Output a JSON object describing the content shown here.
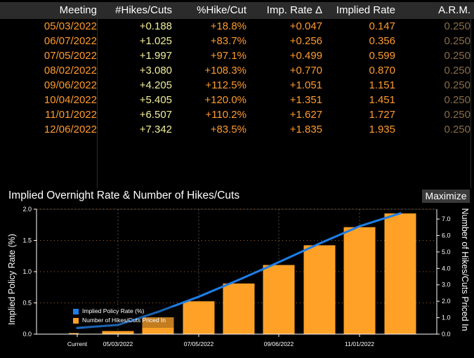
{
  "table": {
    "headers": {
      "meeting": "Meeting",
      "hikes": "#Hikes/Cuts",
      "pct": "%Hike/Cut",
      "imp": "Imp. Rate Δ",
      "rate": "Implied Rate",
      "arm": "A.R.M."
    },
    "rows": [
      {
        "meeting": "05/03/2022",
        "hikes": "+0.188",
        "pct": "+18.8%",
        "imp": "+0.047",
        "rate": "0.147",
        "arm": "0.250"
      },
      {
        "meeting": "06/07/2022",
        "hikes": "+1.025",
        "pct": "+83.7%",
        "imp": "+0.256",
        "rate": "0.356",
        "arm": "0.250"
      },
      {
        "meeting": "07/05/2022",
        "hikes": "+1.997",
        "pct": "+97.1%",
        "imp": "+0.499",
        "rate": "0.599",
        "arm": "0.250"
      },
      {
        "meeting": "08/02/2022",
        "hikes": "+3.080",
        "pct": "+108.3%",
        "imp": "+0.770",
        "rate": "0.870",
        "arm": "0.250"
      },
      {
        "meeting": "09/06/2022",
        "hikes": "+4.205",
        "pct": "+112.5%",
        "imp": "+1.051",
        "rate": "1.151",
        "arm": "0.250"
      },
      {
        "meeting": "10/04/2022",
        "hikes": "+5.405",
        "pct": "+120.0%",
        "imp": "+1.351",
        "rate": "1.451",
        "arm": "0.250"
      },
      {
        "meeting": "11/01/2022",
        "hikes": "+6.507",
        "pct": "+110.2%",
        "imp": "+1.627",
        "rate": "1.727",
        "arm": "0.250"
      },
      {
        "meeting": "12/06/2022",
        "hikes": "+7.342",
        "pct": "+83.5%",
        "imp": "+1.835",
        "rate": "1.935",
        "arm": "0.250"
      }
    ]
  },
  "panel": {
    "title": "Implied Overnight Rate & Number of Hikes/Cuts",
    "maximize_label": "Maximize"
  },
  "colors": {
    "orange": "#ff9b2f",
    "yellow": "#f2ee9b",
    "arm": "#8a6d45",
    "bar": "#ffa126",
    "line": "#1e7ee8",
    "grid_orange": "#ff9b2f"
  },
  "chart_data": {
    "type": "bar",
    "categories": [
      "Current",
      "05/03/2022",
      "06/07/2022",
      "07/05/2022",
      "08/02/2022",
      "09/06/2022",
      "10/04/2022",
      "11/01/2022",
      "12/06/2022"
    ],
    "x_tick_labels": [
      "Current",
      "05/03/2022",
      "07/05/2022",
      "09/06/2022",
      "11/01/2022"
    ],
    "series": [
      {
        "name": "Implied Policy Rate (%)",
        "type": "line",
        "axis": "left",
        "values": [
          0.1,
          0.147,
          0.356,
          0.599,
          0.87,
          1.151,
          1.451,
          1.727,
          1.935
        ]
      },
      {
        "name": "Number of Hikes/Cuts Priced In",
        "type": "bar",
        "axis": "right",
        "values": [
          0,
          0.188,
          1.025,
          1.997,
          3.08,
          4.205,
          5.405,
          6.507,
          7.342
        ]
      }
    ],
    "ylabel_left": "Implied Policy Rate (%)",
    "ylabel_right": "Number of Hikes/Cuts Priced In",
    "yticks_left": [
      "0.0",
      "0.5",
      "1.0",
      "1.5",
      "2.0"
    ],
    "yticks_right": [
      "0.0",
      "1.0",
      "2.0",
      "3.0",
      "4.0",
      "5.0",
      "6.0",
      "7.0"
    ],
    "ylim_left": [
      0,
      2.0
    ],
    "ylim_right": [
      0,
      7.6
    ],
    "grid": true
  }
}
